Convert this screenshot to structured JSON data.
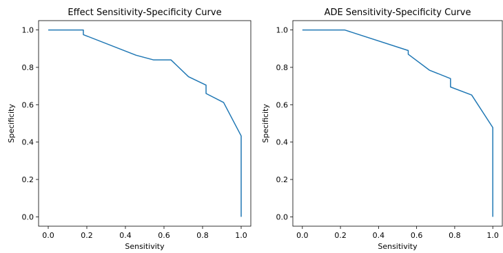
{
  "chart_data": [
    {
      "type": "line",
      "title": "Effect Sensitivity-Specificity Curve",
      "xlabel": "Sensitivity",
      "ylabel": "Specificity",
      "xlim": [
        -0.05,
        1.05
      ],
      "ylim": [
        -0.05,
        1.05
      ],
      "xticks": [
        "0.0",
        "0.2",
        "0.4",
        "0.6",
        "0.8",
        "1.0"
      ],
      "yticks": [
        "0.0",
        "0.2",
        "0.4",
        "0.6",
        "0.8",
        "1.0"
      ],
      "series_color": "#1f77b4",
      "x": [
        0.0,
        0.182,
        0.182,
        0.455,
        0.545,
        0.636,
        0.727,
        0.818,
        0.818,
        0.909,
        1.0,
        1.0
      ],
      "y": [
        1.0,
        1.0,
        0.975,
        0.865,
        0.84,
        0.84,
        0.75,
        0.705,
        0.66,
        0.612,
        0.433,
        0.0
      ]
    },
    {
      "type": "line",
      "title": "ADE Sensitivity-Specificity Curve",
      "xlabel": "Sensitivity",
      "ylabel": "Specificity",
      "xlim": [
        -0.05,
        1.05
      ],
      "ylim": [
        -0.05,
        1.05
      ],
      "xticks": [
        "0.0",
        "0.2",
        "0.4",
        "0.6",
        "0.8",
        "1.0"
      ],
      "yticks": [
        "0.0",
        "0.2",
        "0.4",
        "0.6",
        "0.8",
        "1.0"
      ],
      "series_color": "#1f77b4",
      "x": [
        0.0,
        0.222,
        0.556,
        0.556,
        0.667,
        0.778,
        0.778,
        0.889,
        1.0,
        1.0
      ],
      "y": [
        1.0,
        1.0,
        0.89,
        0.87,
        0.785,
        0.74,
        0.695,
        0.652,
        0.478,
        0.0
      ]
    }
  ]
}
